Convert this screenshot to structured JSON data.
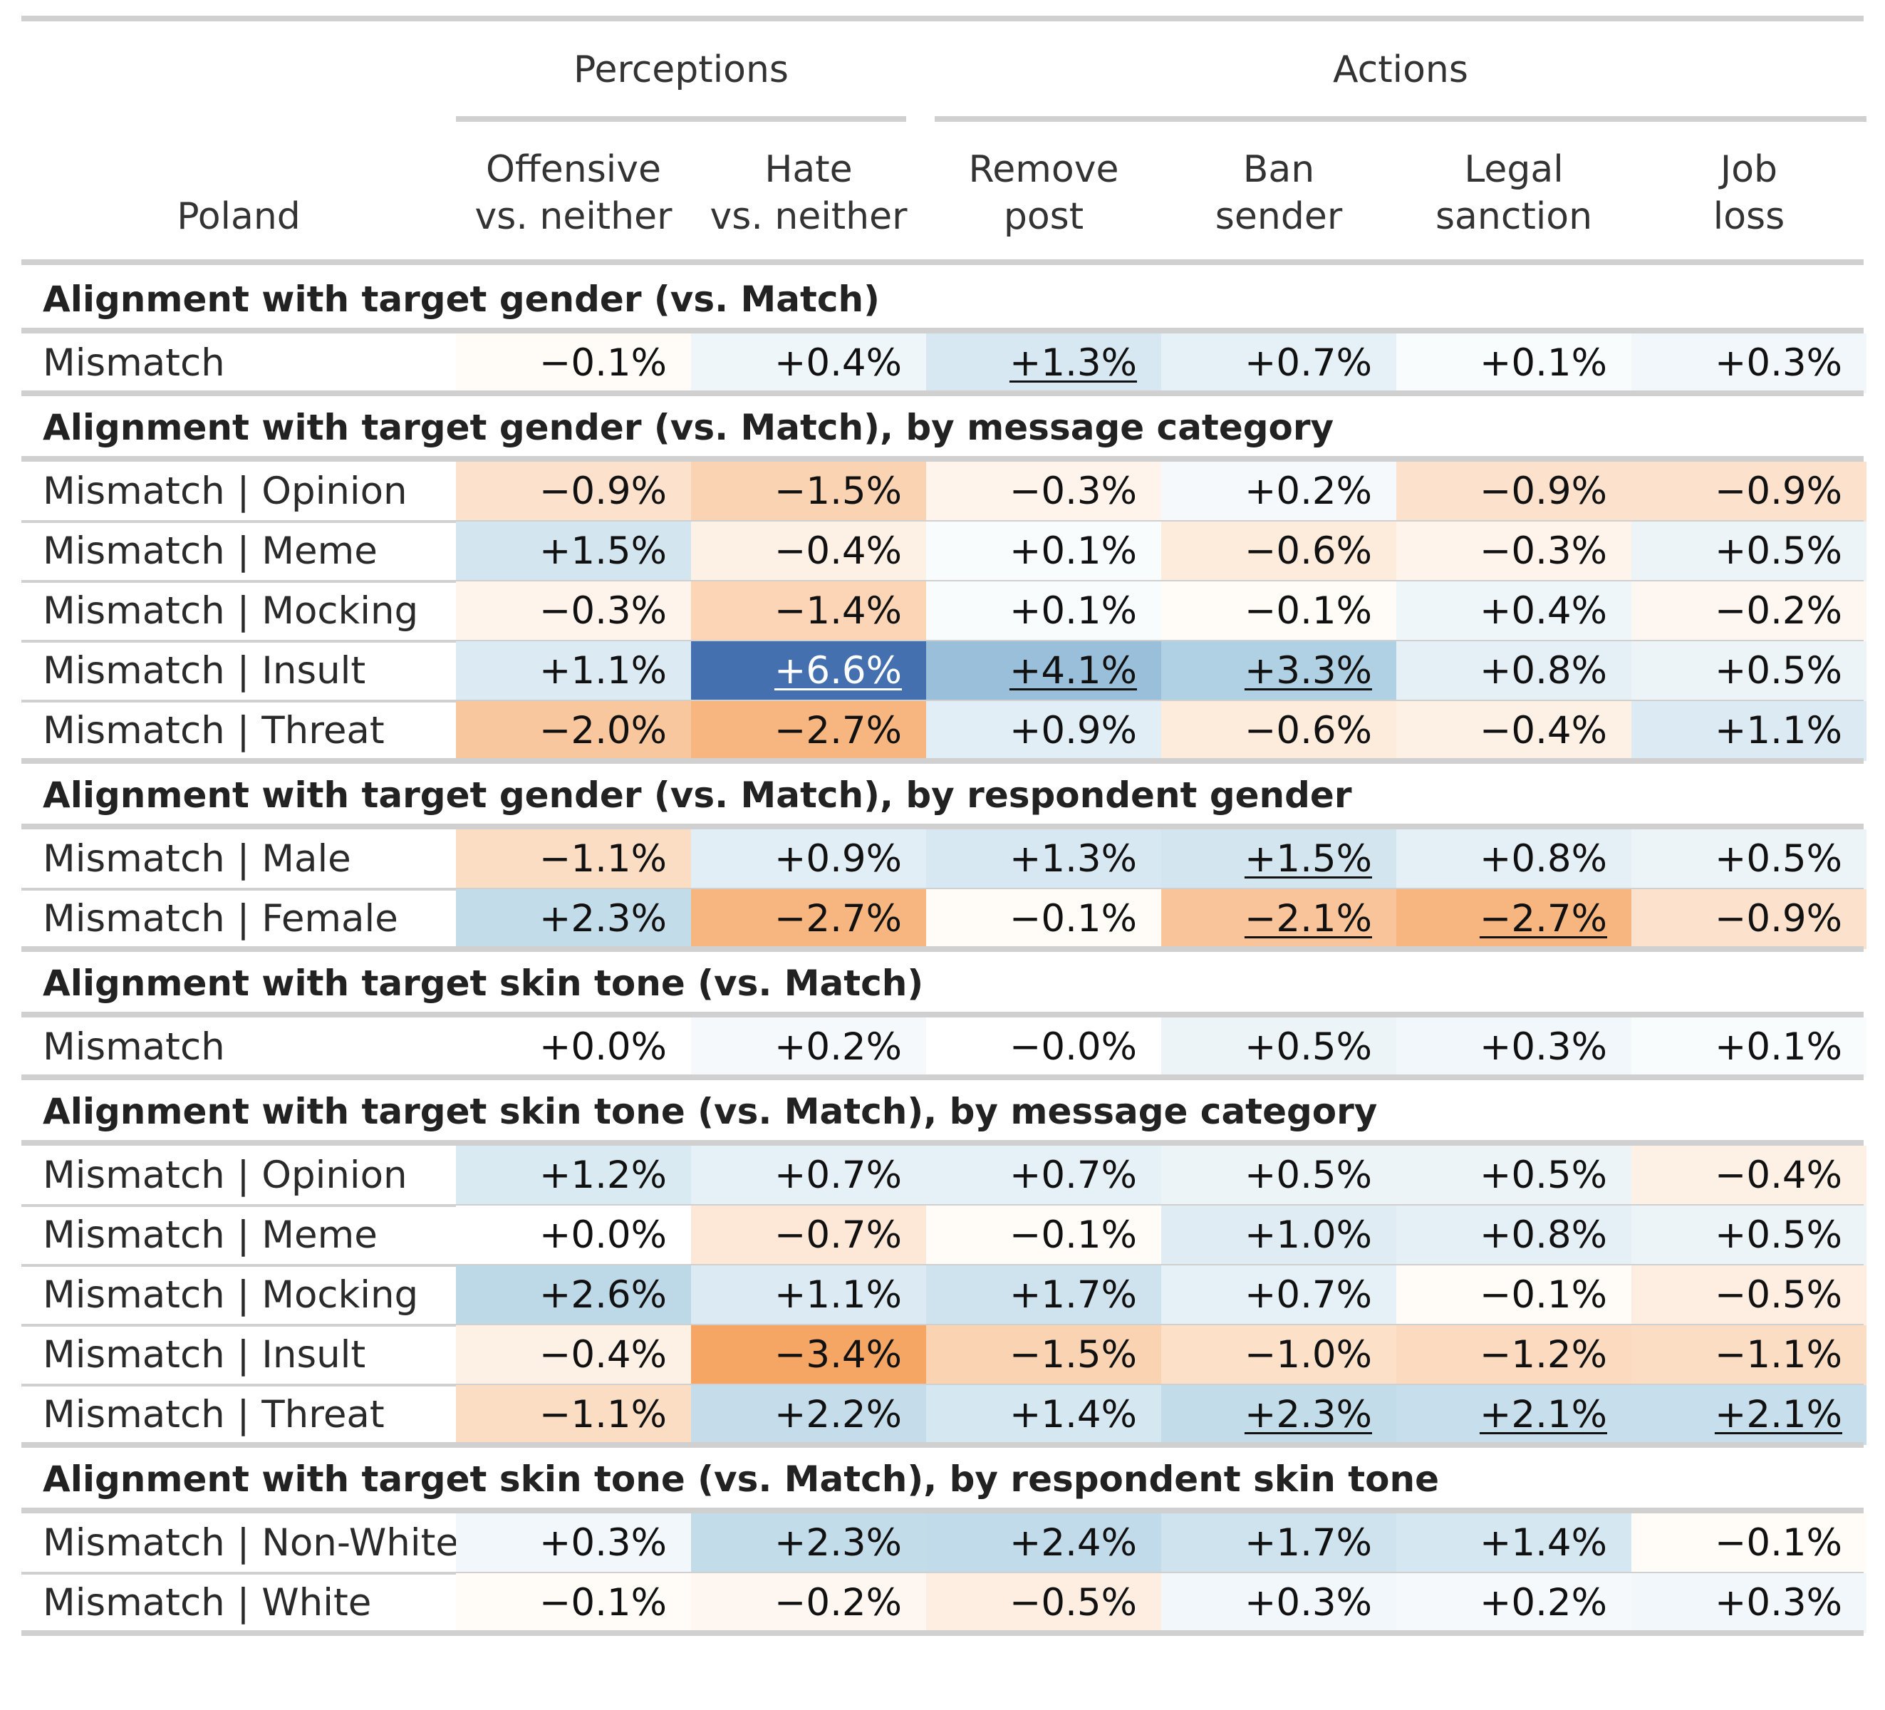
{
  "chart_data": {
    "type": "table",
    "stub_header": "Poland",
    "column_groups": [
      {
        "label": "Perceptions",
        "columns": [
          0,
          1
        ]
      },
      {
        "label": "Actions",
        "columns": [
          2,
          3,
          4,
          5
        ]
      }
    ],
    "columns": [
      [
        "Offensive",
        "vs. neither"
      ],
      [
        "Hate",
        "vs. neither"
      ],
      [
        "Remove",
        "post"
      ],
      [
        "Ban",
        "sender"
      ],
      [
        "Legal",
        "sanction"
      ],
      [
        "Job",
        "loss"
      ]
    ],
    "color_scale": {
      "negative": "#f5a25d",
      "positive": "#4470b0",
      "neutral": "#ffffff",
      "max_abs": 6.6
    },
    "sections": [
      {
        "title": "Alignment with target gender (vs. Match)",
        "rows": [
          {
            "label": "Mismatch",
            "values": [
              -0.1,
              0.4,
              1.3,
              0.7,
              0.1,
              0.3
            ],
            "text": [
              "−0.1%",
              "+0.4%",
              "+1.3%",
              "+0.7%",
              "+0.1%",
              "+0.3%"
            ],
            "underlined": [
              false,
              false,
              true,
              false,
              false,
              false
            ]
          }
        ]
      },
      {
        "title": "Alignment with target gender (vs. Match), by message category",
        "rows": [
          {
            "label": "Mismatch | Opinion",
            "values": [
              -0.9,
              -1.5,
              -0.3,
              0.2,
              -0.9,
              -0.9
            ],
            "text": [
              "−0.9%",
              "−1.5%",
              "−0.3%",
              "+0.2%",
              "−0.9%",
              "−0.9%"
            ],
            "underlined": [
              false,
              false,
              false,
              false,
              false,
              false
            ]
          },
          {
            "label": "Mismatch | Meme",
            "values": [
              1.5,
              -0.4,
              0.1,
              -0.6,
              -0.3,
              0.5
            ],
            "text": [
              "+1.5%",
              "−0.4%",
              "+0.1%",
              "−0.6%",
              "−0.3%",
              "+0.5%"
            ],
            "underlined": [
              false,
              false,
              false,
              false,
              false,
              false
            ]
          },
          {
            "label": "Mismatch | Mocking",
            "values": [
              -0.3,
              -1.4,
              0.1,
              -0.1,
              0.4,
              -0.2
            ],
            "text": [
              "−0.3%",
              "−1.4%",
              "+0.1%",
              "−0.1%",
              "+0.4%",
              "−0.2%"
            ],
            "underlined": [
              false,
              false,
              false,
              false,
              false,
              false
            ]
          },
          {
            "label": "Mismatch | Insult",
            "values": [
              1.1,
              6.6,
              4.1,
              3.3,
              0.8,
              0.5
            ],
            "text": [
              "+1.1%",
              "+6.6%",
              "+4.1%",
              "+3.3%",
              "+0.8%",
              "+0.5%"
            ],
            "underlined": [
              false,
              true,
              true,
              true,
              false,
              false
            ]
          },
          {
            "label": "Mismatch | Threat",
            "values": [
              -2.0,
              -2.7,
              0.9,
              -0.6,
              -0.4,
              1.1
            ],
            "text": [
              "−2.0%",
              "−2.7%",
              "+0.9%",
              "−0.6%",
              "−0.4%",
              "+1.1%"
            ],
            "underlined": [
              false,
              false,
              false,
              false,
              false,
              false
            ]
          }
        ]
      },
      {
        "title": "Alignment with target gender (vs. Match), by respondent gender",
        "rows": [
          {
            "label": "Mismatch | Male",
            "values": [
              -1.1,
              0.9,
              1.3,
              1.5,
              0.8,
              0.5
            ],
            "text": [
              "−1.1%",
              "+0.9%",
              "+1.3%",
              "+1.5%",
              "+0.8%",
              "+0.5%"
            ],
            "underlined": [
              false,
              false,
              false,
              true,
              false,
              false
            ]
          },
          {
            "label": "Mismatch | Female",
            "values": [
              2.3,
              -2.7,
              -0.1,
              -2.1,
              -2.7,
              -0.9
            ],
            "text": [
              "+2.3%",
              "−2.7%",
              "−0.1%",
              "−2.1%",
              "−2.7%",
              "−0.9%"
            ],
            "underlined": [
              false,
              false,
              false,
              true,
              true,
              false
            ]
          }
        ]
      },
      {
        "title": "Alignment with target skin tone (vs. Match)",
        "rows": [
          {
            "label": "Mismatch",
            "values": [
              0.0,
              0.2,
              -0.0,
              0.5,
              0.3,
              0.1
            ],
            "text": [
              "+0.0%",
              "+0.2%",
              "−0.0%",
              "+0.5%",
              "+0.3%",
              "+0.1%"
            ],
            "underlined": [
              false,
              false,
              false,
              false,
              false,
              false
            ]
          }
        ]
      },
      {
        "title": "Alignment with target skin tone (vs. Match), by message category",
        "rows": [
          {
            "label": "Mismatch | Opinion",
            "values": [
              1.2,
              0.7,
              0.7,
              0.5,
              0.5,
              -0.4
            ],
            "text": [
              "+1.2%",
              "+0.7%",
              "+0.7%",
              "+0.5%",
              "+0.5%",
              "−0.4%"
            ],
            "underlined": [
              false,
              false,
              false,
              false,
              false,
              false
            ]
          },
          {
            "label": "Mismatch | Meme",
            "values": [
              0.0,
              -0.7,
              -0.1,
              1.0,
              0.8,
              0.5
            ],
            "text": [
              "+0.0%",
              "−0.7%",
              "−0.1%",
              "+1.0%",
              "+0.8%",
              "+0.5%"
            ],
            "underlined": [
              false,
              false,
              false,
              false,
              false,
              false
            ]
          },
          {
            "label": "Mismatch | Mocking",
            "values": [
              2.6,
              1.1,
              1.7,
              0.7,
              -0.1,
              -0.5
            ],
            "text": [
              "+2.6%",
              "+1.1%",
              "+1.7%",
              "+0.7%",
              "−0.1%",
              "−0.5%"
            ],
            "underlined": [
              false,
              false,
              false,
              false,
              false,
              false
            ]
          },
          {
            "label": "Mismatch | Insult",
            "values": [
              -0.4,
              -3.4,
              -1.5,
              -1.0,
              -1.2,
              -1.1
            ],
            "text": [
              "−0.4%",
              "−3.4%",
              "−1.5%",
              "−1.0%",
              "−1.2%",
              "−1.1%"
            ],
            "underlined": [
              false,
              false,
              false,
              false,
              false,
              false
            ]
          },
          {
            "label": "Mismatch | Threat",
            "values": [
              -1.1,
              2.2,
              1.4,
              2.3,
              2.1,
              2.1
            ],
            "text": [
              "−1.1%",
              "+2.2%",
              "+1.4%",
              "+2.3%",
              "+2.1%",
              "+2.1%"
            ],
            "underlined": [
              false,
              false,
              false,
              true,
              true,
              true
            ]
          }
        ]
      },
      {
        "title": "Alignment with target skin tone (vs. Match), by respondent skin tone",
        "rows": [
          {
            "label": "Mismatch | Non-White",
            "values": [
              0.3,
              2.3,
              2.4,
              1.7,
              1.4,
              -0.1
            ],
            "text": [
              "+0.3%",
              "+2.3%",
              "+2.4%",
              "+1.7%",
              "+1.4%",
              "−0.1%"
            ],
            "underlined": [
              false,
              false,
              false,
              false,
              false,
              false
            ]
          },
          {
            "label": "Mismatch | White",
            "values": [
              -0.1,
              -0.2,
              -0.5,
              0.3,
              0.2,
              0.3
            ],
            "text": [
              "−0.1%",
              "−0.2%",
              "−0.5%",
              "+0.3%",
              "+0.2%",
              "+0.3%"
            ],
            "underlined": [
              false,
              false,
              false,
              false,
              false,
              false
            ]
          }
        ]
      }
    ]
  }
}
